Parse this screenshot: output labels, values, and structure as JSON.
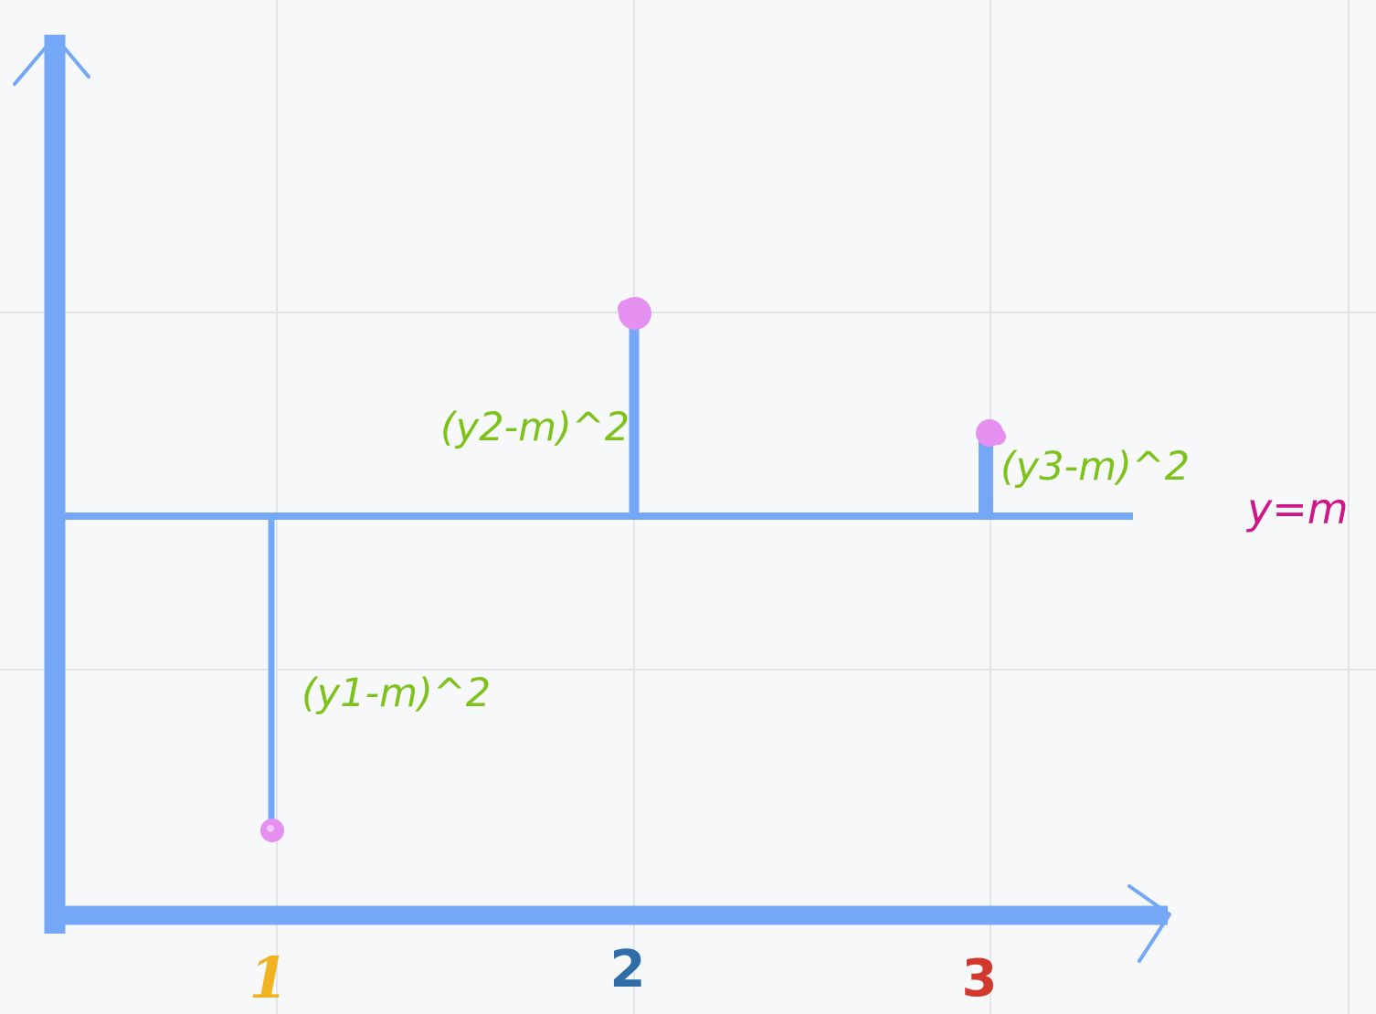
{
  "diagram": {
    "colors": {
      "background": "#f7f8fa",
      "grid": "#e2e4e8",
      "axis": "#74a8f6",
      "point": "#e58ff0",
      "residual_label": "#7cc21a",
      "mean_label": "#d0148a",
      "tick_1": "#f0b322",
      "tick_2": "#2f6da8",
      "tick_3": "#d2382d"
    },
    "mean_line_label": "y=m",
    "residual_labels": [
      "(y1-m)^2",
      "(y2-m)^2",
      "(y3-m)^2"
    ],
    "x_tick_labels": [
      "1",
      "2",
      "3"
    ],
    "point_names": [
      "point-1",
      "point-2",
      "point-3"
    ],
    "point_shape": "dot"
  }
}
